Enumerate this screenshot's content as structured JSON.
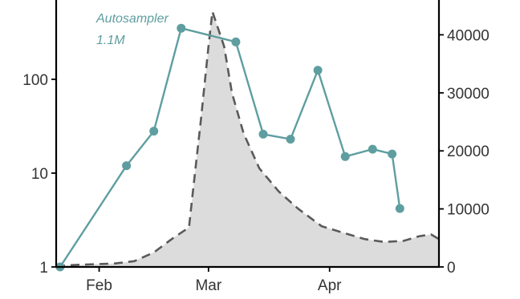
{
  "chart_data": {
    "type": "line",
    "title": "",
    "xlabel": "",
    "x_tick_labels": [
      "Feb",
      "Mar",
      "Apr"
    ],
    "x_tick_dates": [
      "2022-02-01",
      "2022-03-01",
      "2022-04-01"
    ],
    "xlim": [
      "2022-01-21",
      "2022-04-29"
    ],
    "left_axis": {
      "label": "",
      "scale": "log",
      "ylim": [
        1,
        700
      ],
      "ticks": [
        1,
        10,
        100
      ],
      "tick_labels": [
        "1",
        "10",
        "100"
      ]
    },
    "right_axis": {
      "label": "",
      "scale": "linear",
      "ylim": [
        0,
        46000
      ],
      "ticks": [
        0,
        10000,
        20000,
        30000,
        40000
      ],
      "tick_labels": [
        "0",
        "10000",
        "20000",
        "30000",
        "40000"
      ]
    },
    "annotation": {
      "lines": [
        "Autosampler",
        "1.1M"
      ],
      "color": "#5f9ea0"
    },
    "series": [
      {
        "axis": "left",
        "style": "line-with-markers",
        "color": "#5f9ea0",
        "points": [
          {
            "x": "2022-01-22",
            "y": 1
          },
          {
            "x": "2022-02-08",
            "y": 12
          },
          {
            "x": "2022-02-15",
            "y": 28
          },
          {
            "x": "2022-02-22",
            "y": 350
          },
          {
            "x": "2022-03-08",
            "y": 250
          },
          {
            "x": "2022-03-15",
            "y": 26
          },
          {
            "x": "2022-03-22",
            "y": 23
          },
          {
            "x": "2022-03-29",
            "y": 125
          },
          {
            "x": "2022-04-05",
            "y": 15
          },
          {
            "x": "2022-04-12",
            "y": 18
          },
          {
            "x": "2022-04-17",
            "y": 16
          },
          {
            "x": "2022-04-19",
            "y": 4.2
          }
        ]
      },
      {
        "axis": "right",
        "style": "dashed-area",
        "color": "#5a5a5a",
        "fill": "#dcdcdc",
        "points": [
          {
            "x": "2022-01-21",
            "y": 200
          },
          {
            "x": "2022-01-28",
            "y": 400
          },
          {
            "x": "2022-02-05",
            "y": 600
          },
          {
            "x": "2022-02-10",
            "y": 1000
          },
          {
            "x": "2022-02-15",
            "y": 2500
          },
          {
            "x": "2022-02-20",
            "y": 5000
          },
          {
            "x": "2022-02-24",
            "y": 6800
          },
          {
            "x": "2022-02-25",
            "y": 13000
          },
          {
            "x": "2022-02-27",
            "y": 25000
          },
          {
            "x": "2022-03-01",
            "y": 38000
          },
          {
            "x": "2022-03-02",
            "y": 44000
          },
          {
            "x": "2022-03-03",
            "y": 42000
          },
          {
            "x": "2022-03-05",
            "y": 38000
          },
          {
            "x": "2022-03-07",
            "y": 30000
          },
          {
            "x": "2022-03-10",
            "y": 23000
          },
          {
            "x": "2022-03-14",
            "y": 17000
          },
          {
            "x": "2022-03-19",
            "y": 13000
          },
          {
            "x": "2022-03-24",
            "y": 10000
          },
          {
            "x": "2022-03-30",
            "y": 7000
          },
          {
            "x": "2022-04-04",
            "y": 6000
          },
          {
            "x": "2022-04-10",
            "y": 4800
          },
          {
            "x": "2022-04-15",
            "y": 4300
          },
          {
            "x": "2022-04-20",
            "y": 4500
          },
          {
            "x": "2022-04-24",
            "y": 5300
          },
          {
            "x": "2022-04-27",
            "y": 5600
          },
          {
            "x": "2022-04-29",
            "y": 4800
          }
        ]
      }
    ]
  }
}
